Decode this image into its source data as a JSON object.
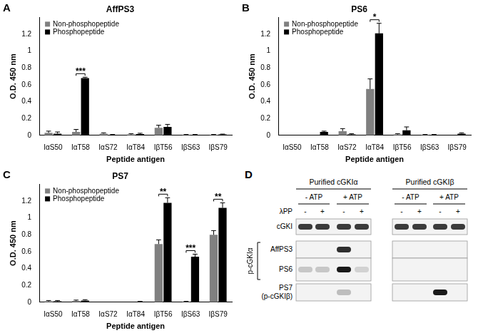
{
  "chart_data": [
    {
      "type": "bar",
      "panel": "A",
      "title": "AffPS3",
      "x_label": "Peptide antigen",
      "y_label": "O.D. 450 nm",
      "categories": [
        "IαS50",
        "IαT58",
        "IαS72",
        "IαT84",
        "IβT56",
        "IβS63",
        "IβS79"
      ],
      "series": [
        {
          "name": "Non-phosphopeptide",
          "color": "#808080",
          "values": [
            0.03,
            0.04,
            0.02,
            0.01,
            0.09,
            0.005,
            0.005
          ],
          "errors": [
            0.02,
            0.03,
            0.01,
            0.01,
            0.03,
            0.005,
            0.005
          ]
        },
        {
          "name": "Phosphopeptide",
          "color": "#000000",
          "values": [
            0.02,
            0.68,
            0.0,
            0.015,
            0.1,
            0.005,
            0.01
          ],
          "errors": [
            0.02,
            0.01,
            0.01,
            0.01,
            0.03,
            0.005,
            0.005
          ]
        }
      ],
      "annotations": [
        {
          "category": "IαT58",
          "text": "***"
        }
      ],
      "ylim": [
        0,
        1.4
      ],
      "yticks": [
        0,
        0.2,
        0.4,
        0.6,
        0.8,
        1,
        1.2
      ],
      "grid": false,
      "legend": "upper left"
    },
    {
      "type": "bar",
      "panel": "B",
      "title": "PS6",
      "x_label": "Peptide antigen",
      "y_label": "O.D. 450 nm",
      "categories": [
        "IαS50",
        "IαT58",
        "IαS72",
        "IαT84",
        "IβT56",
        "IβS63",
        "IβS79"
      ],
      "series": [
        {
          "name": "Non-phosphopeptide",
          "color": "#808080",
          "values": [
            0.0,
            0.0,
            0.05,
            0.55,
            0.01,
            0.005,
            0.0
          ],
          "errors": [
            0.0,
            0.0,
            0.03,
            0.12,
            0.01,
            0.005,
            0.0
          ]
        },
        {
          "name": "Phosphopeptide",
          "color": "#000000",
          "values": [
            0.0,
            0.04,
            0.01,
            1.21,
            0.06,
            0.005,
            0.02
          ],
          "errors": [
            0.0,
            0.01,
            0.01,
            0.12,
            0.04,
            0.005,
            0.01
          ]
        }
      ],
      "annotations": [
        {
          "category": "IαT84",
          "text": "*"
        }
      ],
      "ylim": [
        0,
        1.4
      ],
      "yticks": [
        0,
        0.2,
        0.4,
        0.6,
        0.8,
        1,
        1.2
      ],
      "grid": false,
      "legend": "upper left"
    },
    {
      "type": "bar",
      "panel": "C",
      "title": "PS7",
      "x_label": "Peptide antigen",
      "y_label": "O.D. 450 nm",
      "categories": [
        "IαS50",
        "IαT58",
        "IαS72",
        "IαT84",
        "IβT56",
        "IβS63",
        "IβS79"
      ],
      "series": [
        {
          "name": "Non-phosphopeptide",
          "color": "#808080",
          "values": [
            0.01,
            0.015,
            0.0,
            0.0,
            0.69,
            0.005,
            0.8
          ],
          "errors": [
            0.01,
            0.01,
            0.0,
            0.0,
            0.05,
            0.005,
            0.05
          ]
        },
        {
          "name": "Phosphopeptide",
          "color": "#000000",
          "values": [
            0.01,
            0.02,
            0.0,
            0.005,
            1.18,
            0.54,
            1.12
          ],
          "errors": [
            0.01,
            0.01,
            0.0,
            0.005,
            0.06,
            0.03,
            0.06
          ]
        }
      ],
      "annotations": [
        {
          "category": "IβT56",
          "text": "**"
        },
        {
          "category": "IβS63",
          "text": "***"
        },
        {
          "category": "IβS79",
          "text": "**"
        }
      ],
      "ylim": [
        0,
        1.4
      ],
      "yticks": [
        0,
        0.2,
        0.4,
        0.6,
        0.8,
        1,
        1.2
      ],
      "grid": false,
      "legend": "upper left"
    }
  ],
  "blot": {
    "panel": "D",
    "groups": [
      {
        "title": "Purified cGKIα",
        "conditions": [
          "- ATP",
          "+ ATP"
        ]
      },
      {
        "title": "Purified cGKIβ",
        "conditions": [
          "- ATP",
          "+ ATP"
        ]
      }
    ],
    "treatment": {
      "label": "λPP",
      "lanes": [
        "-",
        "+",
        "-",
        "+",
        "-",
        "+",
        "-",
        "+"
      ]
    },
    "rows": [
      {
        "label": "cGKI",
        "bands": [
          0.85,
          0.85,
          0.85,
          0.85,
          0.85,
          0.85,
          0.85,
          0.85
        ]
      },
      {
        "label": "AffPS3",
        "bands": [
          0,
          0,
          0.9,
          0,
          0,
          0,
          0,
          0
        ]
      },
      {
        "label": "PS6",
        "bands": [
          0.2,
          0.2,
          1,
          0.15,
          0,
          0,
          0,
          0
        ]
      },
      {
        "label": "PS7",
        "sublabel": "(p-cGKIβ)",
        "bands": [
          0,
          0,
          0.25,
          0,
          0,
          0,
          1,
          0
        ]
      }
    ],
    "row_group": {
      "label": "p-cGKIα",
      "rows": [
        "AffPS3",
        "PS6"
      ]
    }
  }
}
